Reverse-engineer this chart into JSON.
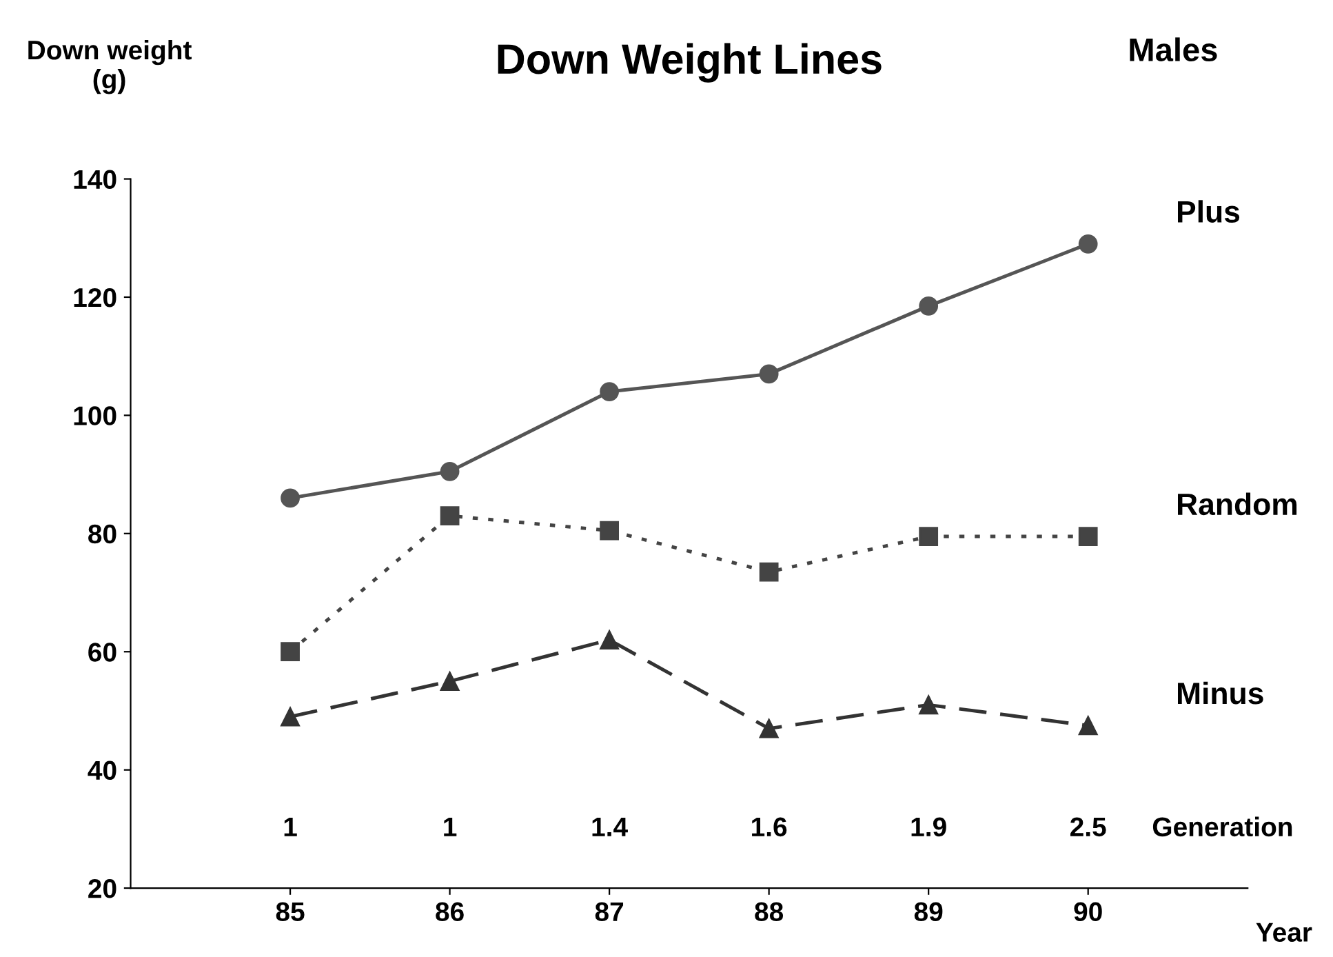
{
  "chart_data": {
    "type": "line",
    "title": "Down Weight Lines",
    "ylabel": "Down weight\n(g)",
    "xlabel": "Year",
    "categories": [
      "85",
      "86",
      "87",
      "88",
      "89",
      "90"
    ],
    "series": [
      {
        "name": "Plus",
        "color": "#555555",
        "marker": "circle",
        "line_style": "solid",
        "values": [
          86,
          90.5,
          104,
          107,
          118.5,
          129
        ]
      },
      {
        "name": "Random",
        "color": "#444444",
        "marker": "square",
        "line_style": "dotted",
        "values": [
          60,
          83,
          80.5,
          73.5,
          79.5,
          79.5
        ]
      },
      {
        "name": "Minus",
        "color": "#333333",
        "marker": "triangle",
        "line_style": "dashed",
        "values": [
          49,
          55,
          62,
          47,
          51,
          47.5
        ]
      }
    ],
    "ylim": [
      20,
      140
    ],
    "yticks": [
      20,
      40,
      60,
      80,
      100,
      120,
      140
    ],
    "grid": false,
    "legend": false,
    "annotations": [
      "Males",
      "Generation",
      "1",
      "1",
      "1.4",
      "1.6",
      "1.9",
      "2.5"
    ]
  }
}
